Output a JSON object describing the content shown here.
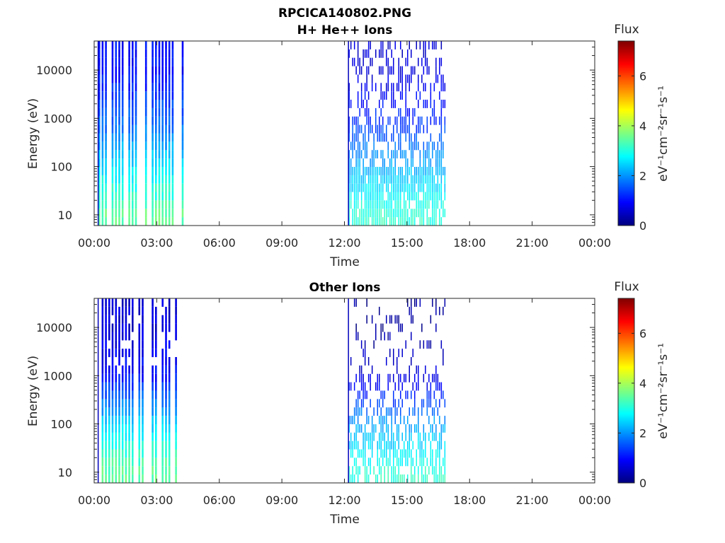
{
  "figure_title": "RPCICA140802.PNG",
  "colorbar_gradient": [
    "#00007f",
    "#0000ff",
    "#007fff",
    "#00ffff",
    "#7fff7f",
    "#ffff00",
    "#ff7f00",
    "#ff0000",
    "#7f0000"
  ],
  "chart_data": [
    {
      "type": "heatmap",
      "title": "H+ He++ Ions",
      "xlabel": "Time",
      "ylabel": "Energy (eV)",
      "x_ticks": [
        "00:00",
        "03:00",
        "06:00",
        "09:00",
        "12:00",
        "15:00",
        "18:00",
        "21:00",
        "00:00"
      ],
      "xlim_hours": [
        0,
        24
      ],
      "y_scale": "log",
      "y_ticks": [
        "10",
        "100",
        "1000",
        "10000"
      ],
      "y_tick_values": [
        10,
        100,
        1000,
        10000
      ],
      "ylim": [
        6,
        40000
      ],
      "colorbar": {
        "label": "Flux",
        "unit_label": "eV⁻¹cm⁻²sr⁻¹s⁻¹",
        "ticks": [
          "0",
          "2",
          "4",
          "6"
        ],
        "range": [
          0,
          7.4
        ]
      },
      "active_intervals_hours": [
        [
          0.2,
          4.25
        ],
        [
          12.2,
          16.85
        ]
      ],
      "approx_flux_by_energy": [
        {
          "energy_eV": 10,
          "flux": 3.5
        },
        {
          "energy_eV": 100,
          "flux": 2.6
        },
        {
          "energy_eV": 1000,
          "flux": 1.6
        },
        {
          "energy_eV": 10000,
          "flux": 1.0
        }
      ]
    },
    {
      "type": "heatmap",
      "title": "Other Ions",
      "xlabel": "Time",
      "ylabel": "Energy (eV)",
      "x_ticks": [
        "00:00",
        "03:00",
        "06:00",
        "09:00",
        "12:00",
        "15:00",
        "18:00",
        "21:00",
        "00:00"
      ],
      "xlim_hours": [
        0,
        24
      ],
      "y_scale": "log",
      "y_ticks": [
        "10",
        "100",
        "1000",
        "10000"
      ],
      "y_tick_values": [
        10,
        100,
        1000,
        10000
      ],
      "ylim": [
        6,
        40000
      ],
      "colorbar": {
        "label": "Flux",
        "unit_label": "eV⁻¹cm⁻²sr⁻¹s⁻¹",
        "ticks": [
          "0",
          "2",
          "4",
          "6"
        ],
        "range": [
          0,
          7.4
        ]
      },
      "active_intervals_hours": [
        [
          0.2,
          4.25
        ],
        [
          12.2,
          16.85
        ]
      ],
      "approx_flux_by_energy": [
        {
          "energy_eV": 10,
          "flux": 3.5
        },
        {
          "energy_eV": 100,
          "flux": 2.5
        },
        {
          "energy_eV": 1000,
          "flux": 1.0
        },
        {
          "energy_eV": 10000,
          "flux": 0.6
        }
      ]
    }
  ]
}
